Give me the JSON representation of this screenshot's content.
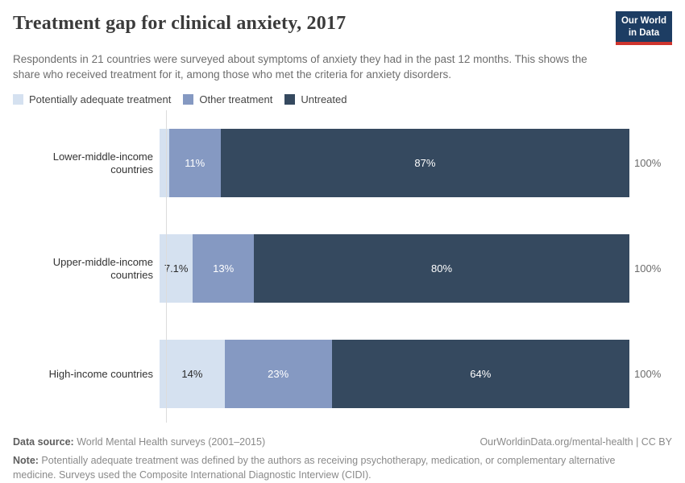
{
  "header": {
    "title": "Treatment gap for clinical anxiety, 2017",
    "subtitle": "Respondents in 21 countries were surveyed about symptoms of anxiety they had in the past 12 months. This shows the share who received treatment for it, among those who met the criteria for anxiety disorders.",
    "logo": {
      "line1": "Our World",
      "line2": "in Data"
    }
  },
  "colors": {
    "potentially_adequate": "#d5e1f0",
    "other_treatment": "#8599c2",
    "untreated": "#35495f",
    "logo_navy": "#1d3d63",
    "logo_red": "#cf352e",
    "axis_line": "#dcdcdc"
  },
  "legend": [
    {
      "label": "Potentially adequate treatment",
      "color": "#d5e1f0"
    },
    {
      "label": "Other treatment",
      "color": "#8599c2"
    },
    {
      "label": "Untreated",
      "color": "#35495f"
    }
  ],
  "chart_data": {
    "type": "bar",
    "orientation": "horizontal",
    "stacked": true,
    "xlim": [
      0,
      100
    ],
    "grid": false,
    "legend_position": "top",
    "categories": [
      "Lower-middle-income countries",
      "Upper-middle-income countries",
      "High-income countries"
    ],
    "series": [
      {
        "name": "Potentially adequate treatment",
        "color": "#d5e1f0",
        "text_on_dark": false,
        "values": [
          2,
          7.1,
          14
        ],
        "labels": [
          "",
          "7.1%",
          "14%"
        ]
      },
      {
        "name": "Other treatment",
        "color": "#8599c2",
        "text_on_dark": true,
        "values": [
          11,
          13,
          23
        ],
        "labels": [
          "11%",
          "13%",
          "23%"
        ]
      },
      {
        "name": "Untreated",
        "color": "#35495f",
        "text_on_dark": true,
        "values": [
          87,
          80,
          64
        ],
        "labels": [
          "87%",
          "80%",
          "64%"
        ]
      }
    ],
    "totals": [
      "100%",
      "100%",
      "100%"
    ]
  },
  "footer": {
    "datasource_label": "Data source:",
    "datasource_value": " World Mental Health surveys (2001–2015)",
    "link": "OurWorldinData.org/mental-health | CC BY",
    "note_label": "Note:",
    "note_text": " Potentially adequate treatment was defined by the authors as receiving psychotherapy, medication, or complementary alternative medicine. Surveys used the Composite International Diagnostic Interview (CIDI)."
  }
}
